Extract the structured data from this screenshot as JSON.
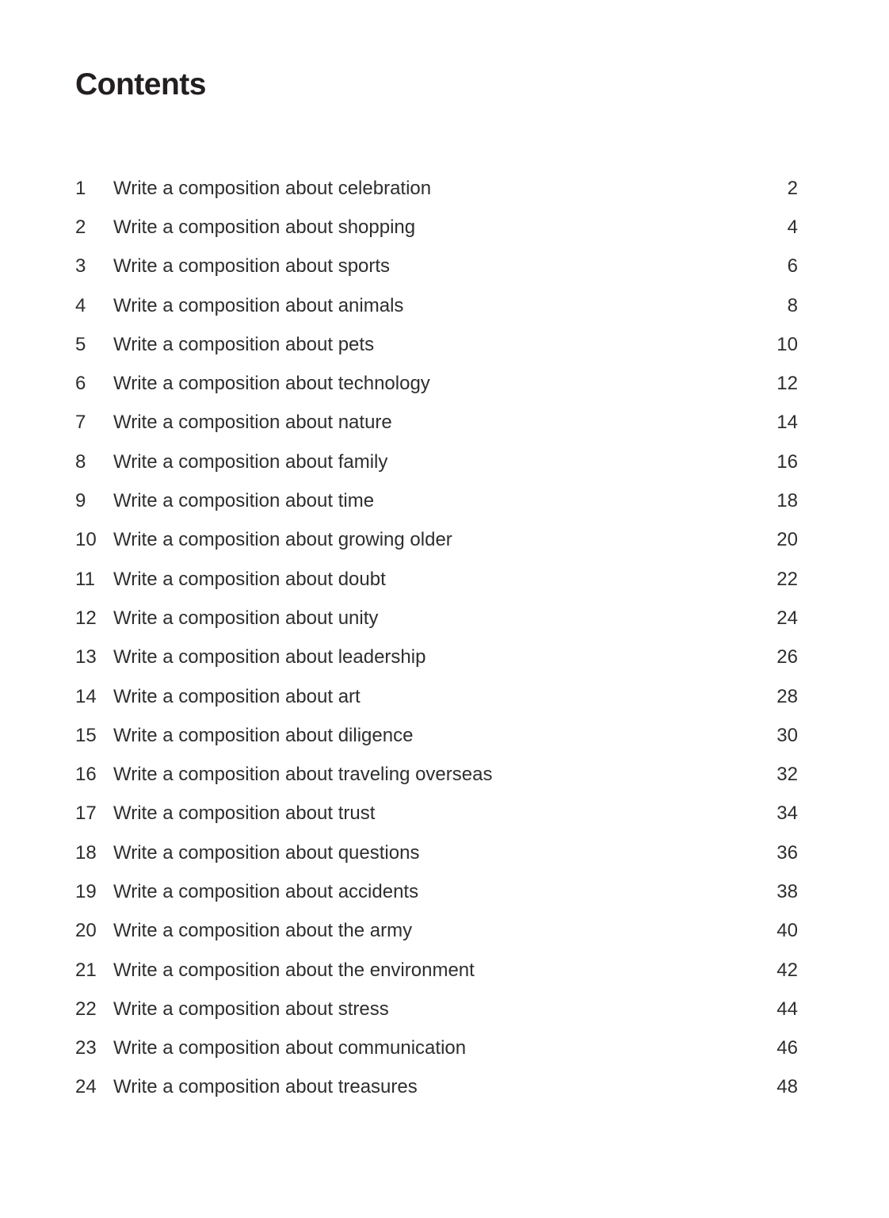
{
  "page": {
    "title": "Contents"
  },
  "toc": {
    "entries": [
      {
        "num": "1",
        "title": "Write a composition about celebration",
        "page": "2"
      },
      {
        "num": "2",
        "title": "Write a composition about shopping",
        "page": "4"
      },
      {
        "num": "3",
        "title": "Write a composition about sports",
        "page": "6"
      },
      {
        "num": "4",
        "title": "Write a composition about animals",
        "page": "8"
      },
      {
        "num": "5",
        "title": "Write a composition about pets",
        "page": "10"
      },
      {
        "num": "6",
        "title": "Write a composition about technology",
        "page": "12"
      },
      {
        "num": "7",
        "title": "Write a composition about nature",
        "page": "14"
      },
      {
        "num": "8",
        "title": "Write a composition about family",
        "page": "16"
      },
      {
        "num": "9",
        "title": "Write a composition about time",
        "page": "18"
      },
      {
        "num": "10",
        "title": "Write a composition about growing older",
        "page": "20"
      },
      {
        "num": "11",
        "title": "Write a composition about doubt",
        "page": "22"
      },
      {
        "num": "12",
        "title": "Write a composition about unity",
        "page": "24"
      },
      {
        "num": "13",
        "title": "Write a composition about leadership",
        "page": "26"
      },
      {
        "num": "14",
        "title": "Write a composition about art",
        "page": "28"
      },
      {
        "num": "15",
        "title": "Write a composition about diligence",
        "page": "30"
      },
      {
        "num": "16",
        "title": "Write a composition about traveling overseas",
        "page": "32"
      },
      {
        "num": "17",
        "title": "Write a composition about trust",
        "page": "34"
      },
      {
        "num": "18",
        "title": "Write a composition about questions",
        "page": "36"
      },
      {
        "num": "19",
        "title": "Write a composition about accidents",
        "page": "38"
      },
      {
        "num": "20",
        "title": "Write a composition about the army",
        "page": "40"
      },
      {
        "num": "21",
        "title": "Write a composition about the environment",
        "page": "42"
      },
      {
        "num": "22",
        "title": "Write a composition about stress",
        "page": "44"
      },
      {
        "num": "23",
        "title": "Write a composition about communication",
        "page": "46"
      },
      {
        "num": "24",
        "title": "Write a composition about treasures",
        "page": "48"
      }
    ]
  }
}
